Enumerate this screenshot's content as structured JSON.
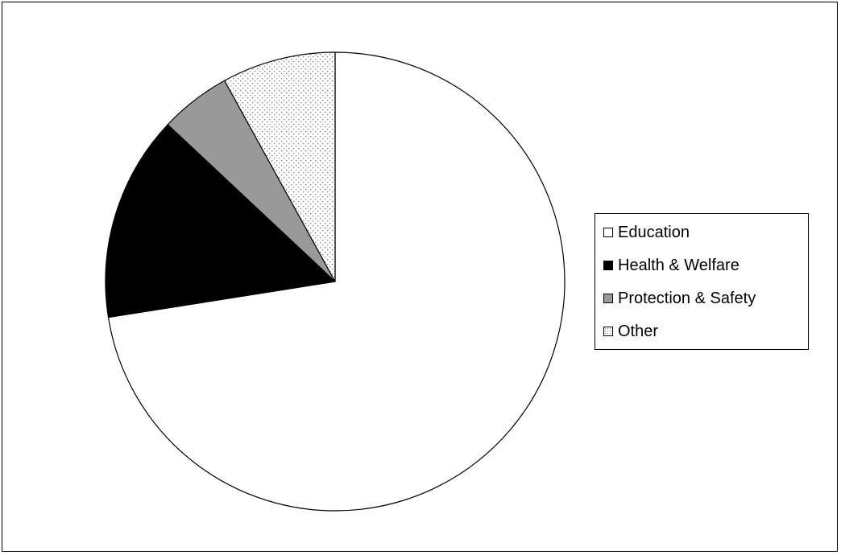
{
  "chart_data": {
    "type": "pie",
    "slices": [
      {
        "label": "Education",
        "value": 72.5,
        "color": "#ffffff",
        "pattern": "none"
      },
      {
        "label": "Health & Welfare",
        "value": 14.5,
        "color": "#000000",
        "pattern": "none"
      },
      {
        "label": "Protection & Safety",
        "value": 5,
        "color": "#999999",
        "pattern": "none"
      },
      {
        "label": "Other",
        "value": 8,
        "color": "#ffffff",
        "pattern": "dots"
      }
    ],
    "title": "",
    "legend_position": "right"
  },
  "legend": {
    "items": [
      {
        "label": "Education"
      },
      {
        "label": "Health & Welfare"
      },
      {
        "label": "Protection & Safety"
      },
      {
        "label": "Other"
      }
    ]
  }
}
